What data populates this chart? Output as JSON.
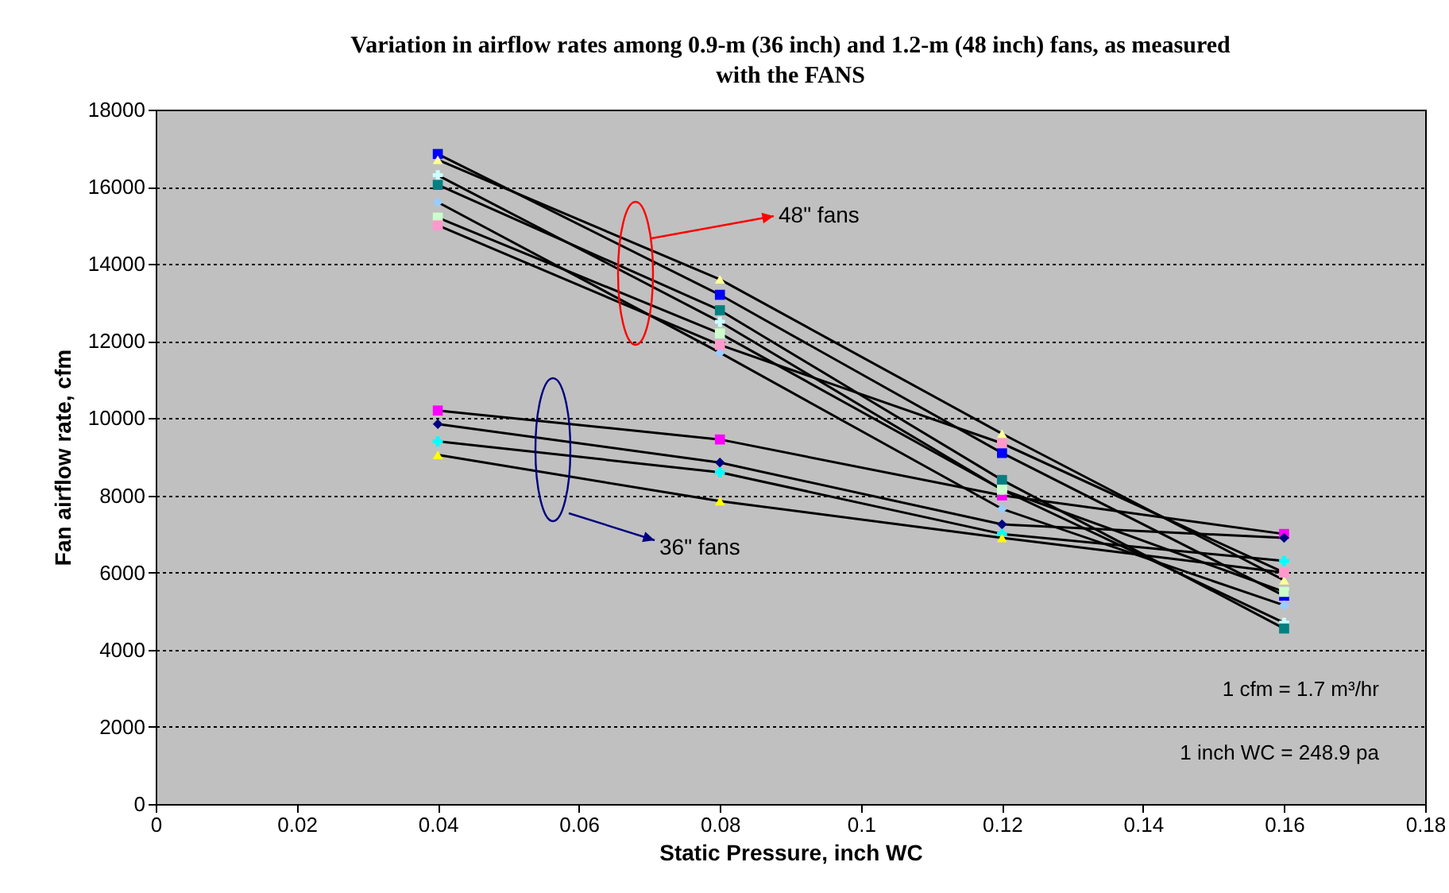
{
  "chart_data": {
    "type": "line",
    "title": "Variation in airflow rates among 0.9-m (36 inch)  and 1.2-m (48 inch) fans, as measured with the FANS",
    "xlabel": "Static Pressure, inch WC",
    "ylabel": "Fan airflow rate, cfm",
    "x": [
      0.04,
      0.08,
      0.12,
      0.16
    ],
    "series": [
      {
        "color": "#ff00ff",
        "marker": "square",
        "values": [
          10200,
          9450,
          8000,
          7000
        ]
      },
      {
        "color": "#000080",
        "marker": "diamond",
        "values": [
          9850,
          8850,
          7250,
          6900
        ]
      },
      {
        "color": "#00ffff",
        "marker": "cross",
        "values": [
          9400,
          8600,
          7000,
          6300
        ]
      },
      {
        "color": "#ffff00",
        "marker": "triangle",
        "values": [
          9050,
          7850,
          6900,
          6000
        ]
      },
      {
        "color": "#0000ff",
        "marker": "square",
        "values": [
          16850,
          13200,
          9100,
          5400
        ]
      },
      {
        "color": "#ffff99",
        "marker": "triangle",
        "values": [
          16700,
          13600,
          9600,
          5800
        ]
      },
      {
        "color": "#ccffff",
        "marker": "cross",
        "values": [
          16300,
          12500,
          8150,
          4700
        ]
      },
      {
        "color": "#008080",
        "marker": "square",
        "values": [
          16050,
          12800,
          8400,
          4550
        ]
      },
      {
        "color": "#99ccff",
        "marker": "diamond",
        "values": [
          15600,
          11700,
          7650,
          5150
        ]
      },
      {
        "color": "#ccffcc",
        "marker": "square",
        "values": [
          15200,
          12200,
          8150,
          5500
        ]
      },
      {
        "color": "#ff99cc",
        "marker": "square",
        "values": [
          15000,
          11900,
          9350,
          6000
        ]
      }
    ],
    "xlim": [
      0,
      0.18
    ],
    "xticks": [
      0,
      0.02,
      0.04,
      0.06,
      0.08,
      0.1,
      0.12,
      0.14,
      0.16,
      0.18
    ],
    "ylim": [
      0,
      18000
    ],
    "yticks": [
      0,
      2000,
      4000,
      6000,
      8000,
      10000,
      12000,
      14000,
      16000,
      18000
    ],
    "grid": "y",
    "legend": false,
    "annotations": [
      "48\" fans",
      "36\" fans",
      "1 cfm = 1.7 m³/hr",
      "1 inch WC = 248.9 pa"
    ]
  }
}
